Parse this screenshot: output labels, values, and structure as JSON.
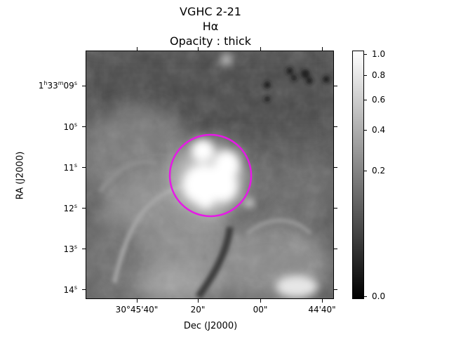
{
  "chart_data": {
    "type": "heatmap",
    "title": [
      "VGHC 2-21",
      "Hα",
      "Opacity : thick"
    ],
    "xlabel": "Dec (J2000)",
    "ylabel": "RA (J2000)",
    "x_ticks": [
      {
        "deg": "30°45'",
        "value": "40\""
      },
      {
        "deg": "",
        "value": "20\""
      },
      {
        "deg": "",
        "value": "00\""
      },
      {
        "deg": "44'",
        "value": "40\""
      }
    ],
    "y_ticks": [
      {
        "h": "1",
        "hs": "h",
        "m": "33",
        "ms": "m",
        "s": "09",
        "ss": "s"
      },
      {
        "h": "",
        "hs": "",
        "m": "",
        "ms": "",
        "s": "10",
        "ss": "s"
      },
      {
        "h": "",
        "hs": "",
        "m": "",
        "ms": "",
        "s": "11",
        "ss": "s"
      },
      {
        "h": "",
        "hs": "",
        "m": "",
        "ms": "",
        "s": "12",
        "ss": "s"
      },
      {
        "h": "",
        "hs": "",
        "m": "",
        "ms": "",
        "s": "13",
        "ss": "s"
      },
      {
        "h": "",
        "hs": "",
        "m": "",
        "ms": "",
        "s": "14",
        "ss": "s"
      }
    ],
    "colorbar": {
      "scale": "nonlinear",
      "ticks": [
        "1.0",
        "0.8",
        "0.6",
        "0.4",
        "0.2",
        "0.0"
      ],
      "colormap": "gray"
    },
    "aperture": {
      "shape": "circle",
      "color": "#e619e6"
    }
  }
}
